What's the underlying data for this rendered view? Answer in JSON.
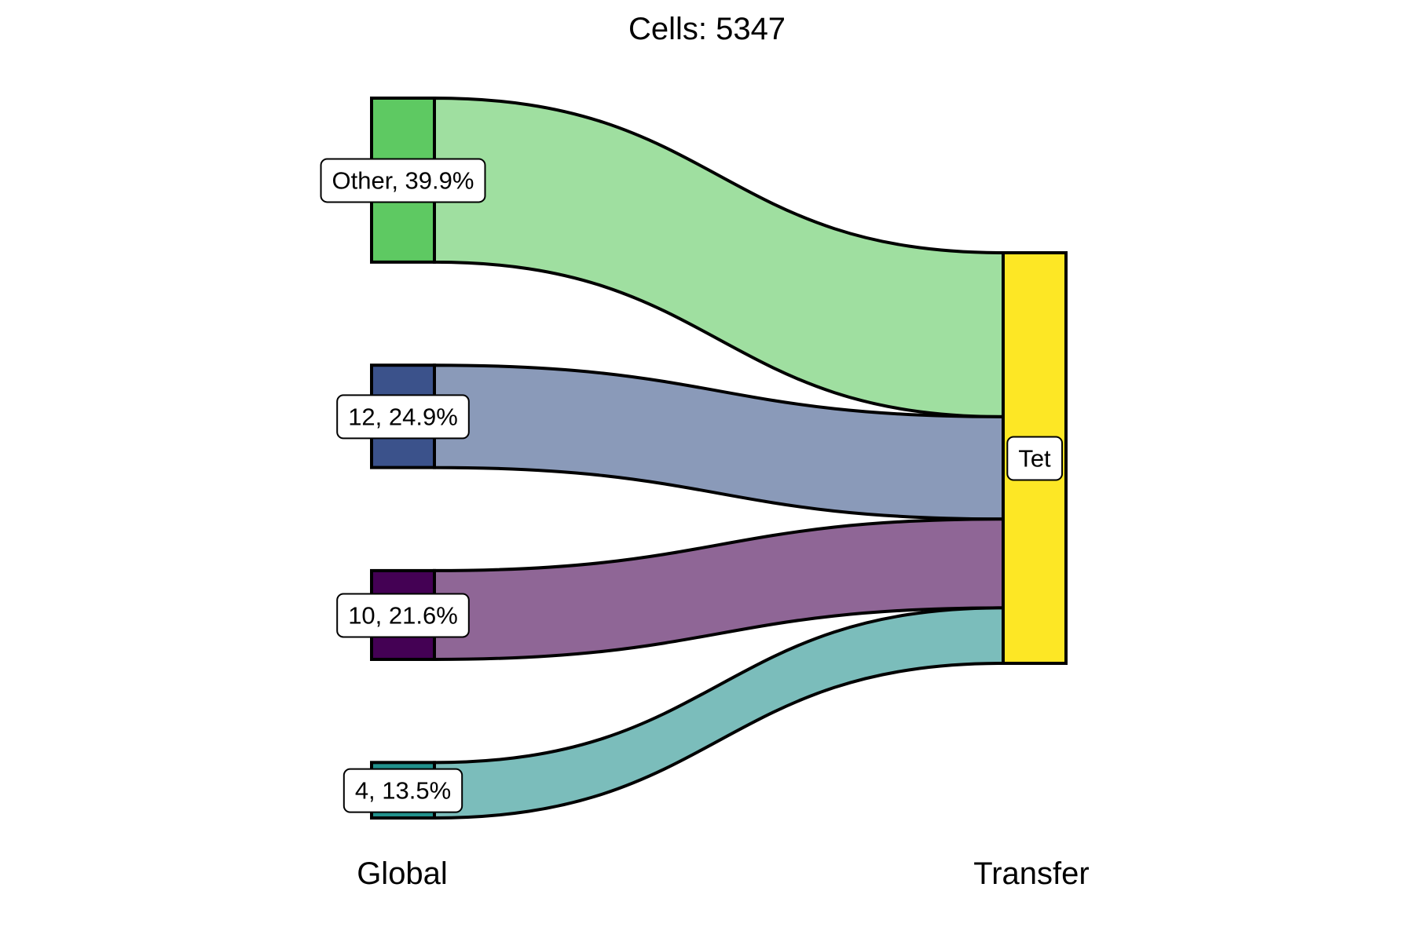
{
  "chart_data": {
    "type": "sankey",
    "title": "Cells:  5347",
    "axes": [
      "Global",
      "Transfer"
    ],
    "left_nodes": [
      {
        "label": "Other, 39.9%",
        "value": 39.9,
        "node_color": "#5ec962",
        "flow_color": "#9fdfa0"
      },
      {
        "label": "12, 24.9%",
        "value": 24.9,
        "node_color": "#3b528b",
        "flow_color": "#8a9ab9"
      },
      {
        "label": "10, 21.6%",
        "value": 21.6,
        "node_color": "#440154",
        "flow_color": "#8f6696"
      },
      {
        "label": "4, 13.5%",
        "value": 13.5,
        "node_color": "#21918c",
        "flow_color": "#7bbdbb"
      }
    ],
    "right_node": {
      "label": "Tet",
      "value": 100,
      "node_color": "#fde725"
    }
  }
}
